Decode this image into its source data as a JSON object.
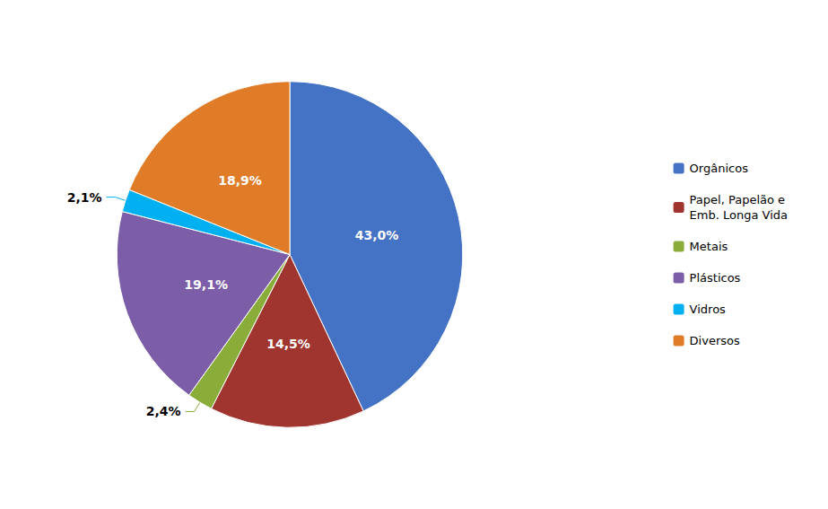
{
  "chart_data": {
    "type": "pie",
    "categories": [
      "Orgânicos",
      "Papel, Papelão e\nEmb. Longa Vida",
      "Metais",
      "Plásticos",
      "Vidros",
      "Diversos"
    ],
    "values": [
      43.0,
      14.5,
      2.4,
      19.1,
      2.1,
      18.9
    ],
    "value_labels": [
      "43,0%",
      "14,5%",
      "2,4%",
      "19,1%",
      "2,1%",
      "18,9%"
    ],
    "colors": [
      "#4472C4",
      "#A03530",
      "#8AAD3A",
      "#7B5EA7",
      "#00B0F0",
      "#E07B28"
    ],
    "data_labels": true,
    "legend": "right"
  }
}
